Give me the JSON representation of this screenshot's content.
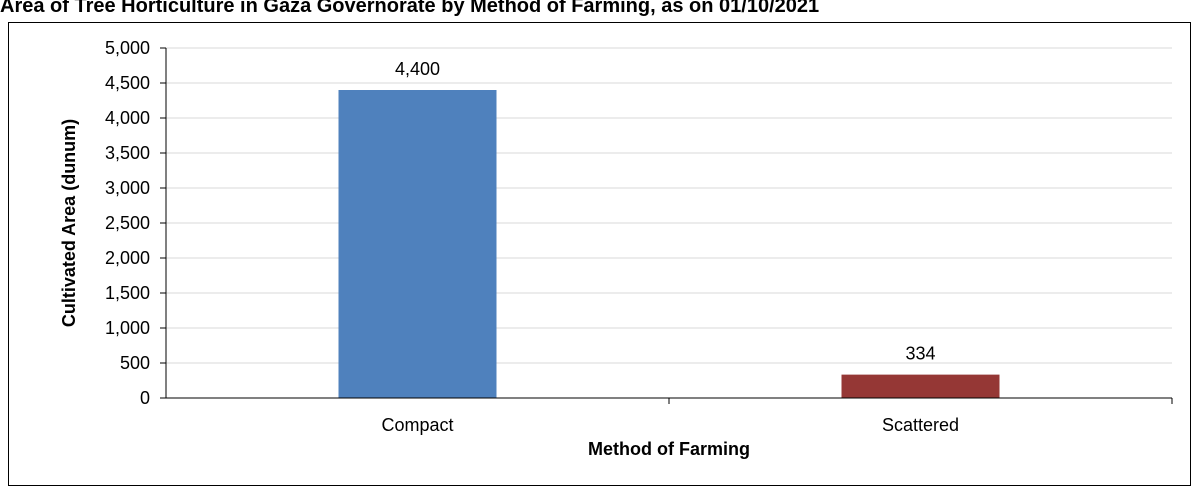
{
  "chart_data": {
    "type": "bar",
    "title": "Area of Tree Horticulture in Gaza Governorate by Method of Farming, as on 01/10/2021",
    "xlabel": "Method of Farming",
    "ylabel": "Cultivated Area (dunum)",
    "categories": [
      "Compact",
      "Scattered"
    ],
    "values": [
      4400,
      334
    ],
    "value_labels": [
      "4,400",
      "334"
    ],
    "bar_colors": [
      "#4f81bd",
      "#953735"
    ],
    "ylim": [
      0,
      5000
    ],
    "yticks": [
      0,
      500,
      1000,
      1500,
      2000,
      2500,
      3000,
      3500,
      4000,
      4500,
      5000
    ],
    "ytick_labels": [
      "0",
      "500",
      "1,000",
      "1,500",
      "2,000",
      "2,500",
      "3,000",
      "3,500",
      "4,000",
      "4,500",
      "5,000"
    ],
    "grid": true,
    "legend": false
  }
}
